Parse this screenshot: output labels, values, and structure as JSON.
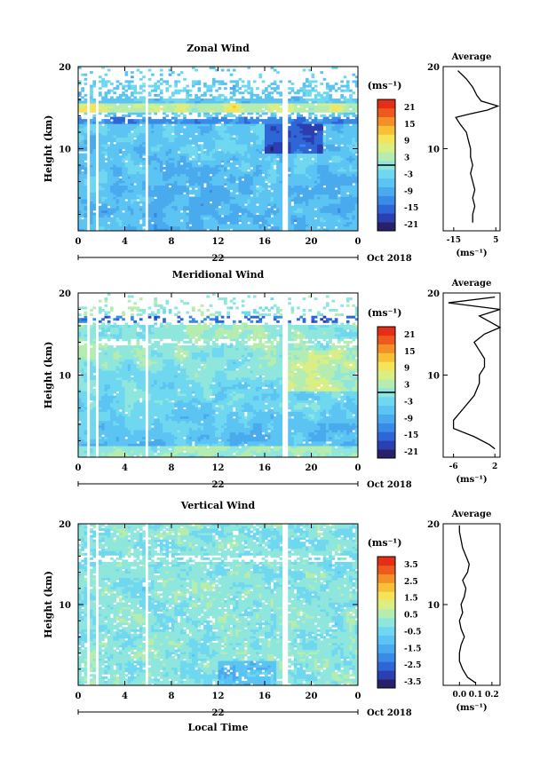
{
  "month_label": "Oct 2018",
  "xlabel": "Local Time",
  "colorbar_unit": "(ms⁻¹)",
  "avg_unit": "(ms⁻¹)",
  "avg_title": "Average",
  "colormap": [
    "#27206b",
    "#2b3fb0",
    "#2f66d6",
    "#3a8be6",
    "#4aaaee",
    "#5cc4f2",
    "#6fd8f0",
    "#8ee6dc",
    "#b5ecb0",
    "#d9ef86",
    "#f3e45a",
    "#f8c038",
    "#f59028",
    "#ee5a1e",
    "#e42f16"
  ],
  "chart_data": [
    {
      "type": "heatmap",
      "title": "Zonal Wind",
      "ylabel": "Height (km)",
      "ylim": [
        0,
        20
      ],
      "yticks": [
        "20",
        "10"
      ],
      "xlim": [
        0,
        24
      ],
      "xticks": [
        "0",
        "4",
        "8",
        "12",
        "16",
        "20",
        "0"
      ],
      "date_label": "22",
      "colorbar_ticks": [
        "21",
        "15",
        "9",
        "3",
        "-3",
        "-9",
        "-15",
        "-21"
      ],
      "clim": [
        -24,
        24
      ],
      "average": {
        "xlim": [
          -20,
          7
        ],
        "xticks": [
          "-15",
          "5"
        ],
        "profile": [
          [
            -6,
            1
          ],
          [
            -6,
            2
          ],
          [
            -5,
            3
          ],
          [
            -6,
            4
          ],
          [
            -5,
            5
          ],
          [
            -6,
            6
          ],
          [
            -7,
            7
          ],
          [
            -6,
            8
          ],
          [
            -7,
            9
          ],
          [
            -7,
            10
          ],
          [
            -8,
            11
          ],
          [
            -9,
            12
          ],
          [
            -12,
            13
          ],
          [
            -14,
            13.8
          ],
          [
            -8,
            14.2
          ],
          [
            1,
            14.7
          ],
          [
            6,
            15.2
          ],
          [
            -2,
            15.8
          ],
          [
            -4,
            16.5
          ],
          [
            -6,
            17.5
          ],
          [
            -9,
            18.5
          ],
          [
            -13,
            19.5
          ]
        ]
      }
    },
    {
      "type": "heatmap",
      "title": "Meridional Wind",
      "ylabel": "Height (km)",
      "ylim": [
        0,
        20
      ],
      "yticks": [
        "20",
        "10"
      ],
      "xlim": [
        0,
        24
      ],
      "xticks": [
        "0",
        "4",
        "8",
        "12",
        "16",
        "20",
        "0"
      ],
      "date_label": "22",
      "colorbar_ticks": [
        "21",
        "15",
        "9",
        "3",
        "-3",
        "-9",
        "-15",
        "-21"
      ],
      "clim": [
        -24,
        24
      ],
      "average": {
        "xlim": [
          -8,
          3
        ],
        "xticks": [
          "-6",
          "2"
        ],
        "profile": [
          [
            2,
            1
          ],
          [
            1,
            1.5
          ],
          [
            -2,
            2.5
          ],
          [
            -6,
            3.5
          ],
          [
            -6,
            4.5
          ],
          [
            -4,
            6
          ],
          [
            -2,
            7.5
          ],
          [
            -1,
            9
          ],
          [
            -1,
            10
          ],
          [
            0,
            11
          ],
          [
            0,
            12
          ],
          [
            -1,
            13
          ],
          [
            -2,
            14
          ],
          [
            0,
            15
          ],
          [
            3,
            15.8
          ],
          [
            1,
            16.5
          ],
          [
            -1,
            17.2
          ],
          [
            3,
            18
          ],
          [
            -7,
            18.8
          ],
          [
            2,
            19.5
          ]
        ]
      }
    },
    {
      "type": "heatmap",
      "title": "Vertical Wind",
      "ylabel": "Height (km)",
      "ylim": [
        0,
        20
      ],
      "yticks": [
        "20",
        "10"
      ],
      "xlim": [
        0,
        24
      ],
      "xticks": [
        "0",
        "4",
        "8",
        "12",
        "16",
        "20",
        "0"
      ],
      "date_label": "22",
      "colorbar_ticks": [
        "3.5",
        "2.5",
        "1.5",
        "0.5",
        "-0.5",
        "-1.5",
        "-2.5",
        "-3.5"
      ],
      "clim": [
        -4,
        4
      ],
      "average": {
        "xlim": [
          -0.1,
          0.25
        ],
        "xticks": [
          "0.0",
          "0.1",
          "0.2"
        ],
        "profile": [
          [
            0.1,
            0.3
          ],
          [
            0.05,
            1
          ],
          [
            0.02,
            2
          ],
          [
            0.0,
            3
          ],
          [
            0.0,
            4
          ],
          [
            0.01,
            5
          ],
          [
            0.03,
            6
          ],
          [
            0.01,
            7
          ],
          [
            0.0,
            8
          ],
          [
            0.02,
            9
          ],
          [
            0.01,
            10
          ],
          [
            0.03,
            11
          ],
          [
            0.04,
            12
          ],
          [
            0.02,
            13
          ],
          [
            0.05,
            14
          ],
          [
            0.06,
            15
          ],
          [
            0.04,
            16
          ],
          [
            0.02,
            17
          ],
          [
            0.01,
            18
          ],
          [
            0.0,
            19
          ],
          [
            0.0,
            19.8
          ]
        ]
      }
    }
  ]
}
